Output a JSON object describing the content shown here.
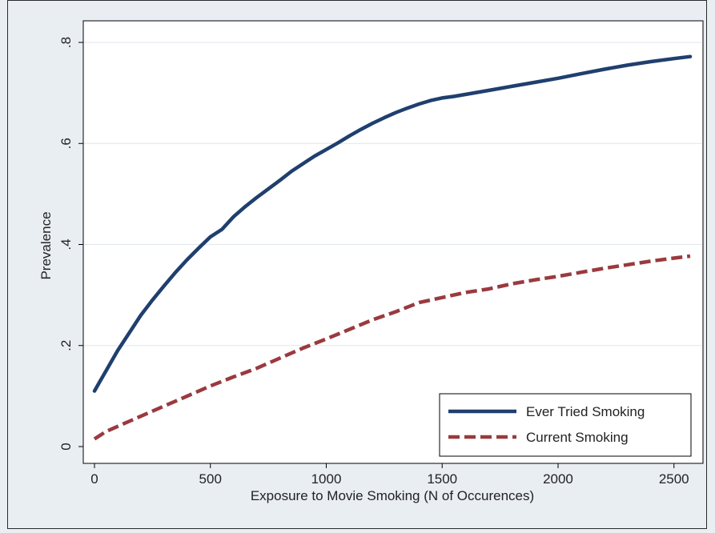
{
  "chart_data": {
    "type": "line",
    "title": "",
    "xlabel": "Exposure to Movie Smoking (N of Occurences)",
    "ylabel": "Prevalence",
    "xlim": [
      0,
      2570
    ],
    "ylim": [
      0,
      0.8
    ],
    "x_ticks": [
      0,
      500,
      1000,
      1500,
      2000,
      2500
    ],
    "x_tick_labels": [
      "0",
      "500",
      "1000",
      "1500",
      "2000",
      "2500"
    ],
    "y_ticks": [
      0,
      0.2,
      0.4,
      0.6,
      0.8
    ],
    "y_tick_labels": [
      "0",
      ".2",
      ".4",
      ".6",
      ".8"
    ],
    "grid": "horizontal",
    "legend_position": "bottom-right",
    "series": [
      {
        "name": "Ever Tried Smoking",
        "color": "#1f3f6e",
        "style": "solid",
        "x": [
          0,
          25,
          50,
          100,
          150,
          200,
          250,
          300,
          350,
          400,
          450,
          500,
          550,
          600,
          650,
          700,
          750,
          800,
          850,
          900,
          950,
          1000,
          1050,
          1100,
          1150,
          1200,
          1250,
          1300,
          1350,
          1400,
          1450,
          1500,
          1550,
          1600,
          1700,
          1800,
          1900,
          2000,
          2100,
          2200,
          2300,
          2400,
          2500,
          2570
        ],
        "y": [
          0.11,
          0.13,
          0.15,
          0.19,
          0.225,
          0.26,
          0.29,
          0.318,
          0.345,
          0.37,
          0.393,
          0.415,
          0.43,
          0.455,
          0.475,
          0.493,
          0.51,
          0.527,
          0.545,
          0.56,
          0.575,
          0.588,
          0.601,
          0.615,
          0.628,
          0.64,
          0.651,
          0.661,
          0.67,
          0.678,
          0.685,
          0.69,
          0.693,
          0.697,
          0.705,
          0.713,
          0.721,
          0.729,
          0.738,
          0.747,
          0.755,
          0.762,
          0.768,
          0.772
        ]
      },
      {
        "name": "Current Smoking",
        "color": "#9a3a3f",
        "style": "dashed",
        "x": [
          0,
          50,
          100,
          200,
          300,
          400,
          500,
          600,
          700,
          800,
          900,
          1000,
          1100,
          1200,
          1300,
          1400,
          1500,
          1600,
          1700,
          1800,
          1900,
          2000,
          2100,
          2200,
          2300,
          2400,
          2500,
          2570
        ],
        "y": [
          0.015,
          0.03,
          0.04,
          0.06,
          0.08,
          0.1,
          0.12,
          0.138,
          0.155,
          0.175,
          0.195,
          0.213,
          0.232,
          0.251,
          0.267,
          0.285,
          0.295,
          0.305,
          0.312,
          0.322,
          0.33,
          0.337,
          0.345,
          0.353,
          0.36,
          0.367,
          0.373,
          0.377
        ]
      }
    ]
  }
}
